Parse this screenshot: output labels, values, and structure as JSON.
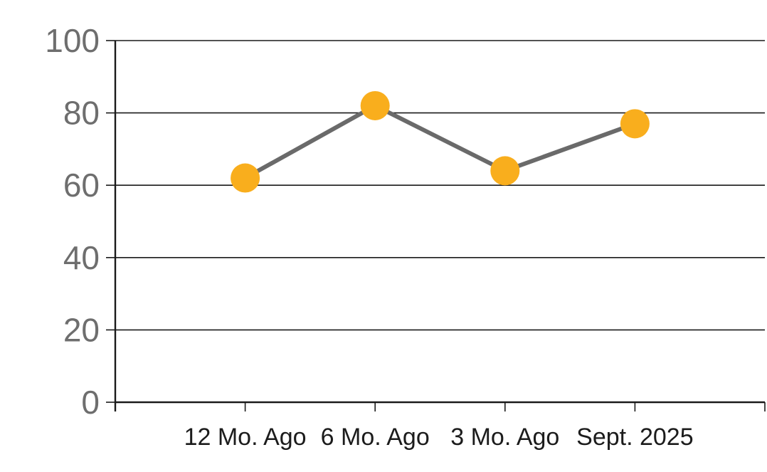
{
  "chart_data": {
    "type": "line",
    "categories": [
      "12 Mo. Ago",
      "6 Mo. Ago",
      "3 Mo. Ago",
      "Sept. 2025"
    ],
    "values": [
      62,
      82,
      64,
      77
    ],
    "title": "",
    "xlabel": "",
    "ylabel": "",
    "ylim": [
      0,
      100
    ],
    "yticks": [
      0,
      20,
      40,
      60,
      80,
      100
    ],
    "grid": true,
    "legend": false,
    "colors": {
      "marker": "#F9AE1D",
      "line": "#6A6A6A",
      "gridline": "#1A1A1A",
      "axis": "#1A1A1A",
      "y_tick_label": "#6E6E6E",
      "x_tick_label": "#1C1C1C",
      "background": "#FFFFFF"
    }
  }
}
